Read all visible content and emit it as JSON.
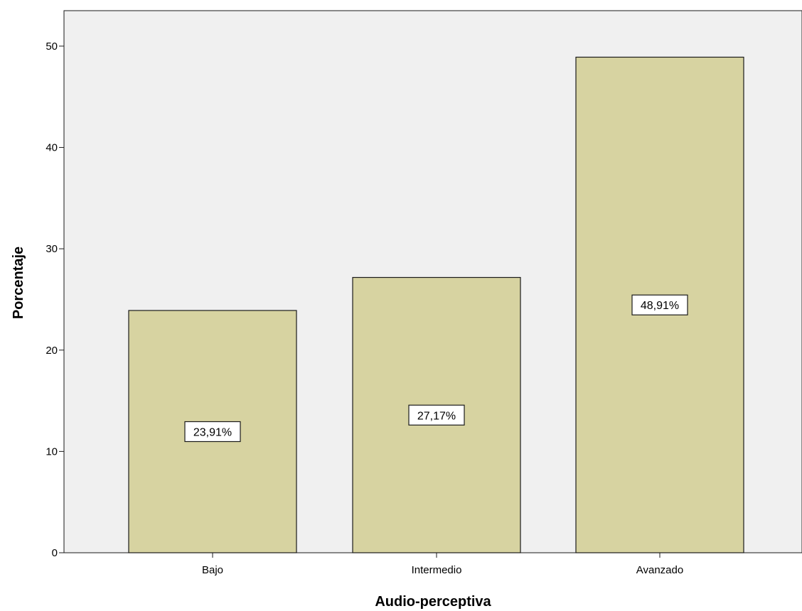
{
  "chart_data": {
    "type": "bar",
    "title": "",
    "xlabel": "Audio-perceptiva",
    "ylabel": "Porcentaje",
    "categories": [
      "Bajo",
      "Intermedio",
      "Avanzado"
    ],
    "values": [
      23.91,
      27.17,
      48.91
    ],
    "data_labels": [
      "23,91%",
      "27,17%",
      "48,91%"
    ],
    "y_ticks": [
      0,
      10,
      20,
      30,
      40,
      50
    ],
    "ylim": [
      0,
      53.5
    ],
    "grid": false,
    "legend": "none",
    "colors": {
      "bar_fill": "#d7d3a1",
      "bar_stroke": "#1a1a1a",
      "plot_background": "#f0f0f0",
      "label_box": "#ffffff"
    }
  }
}
